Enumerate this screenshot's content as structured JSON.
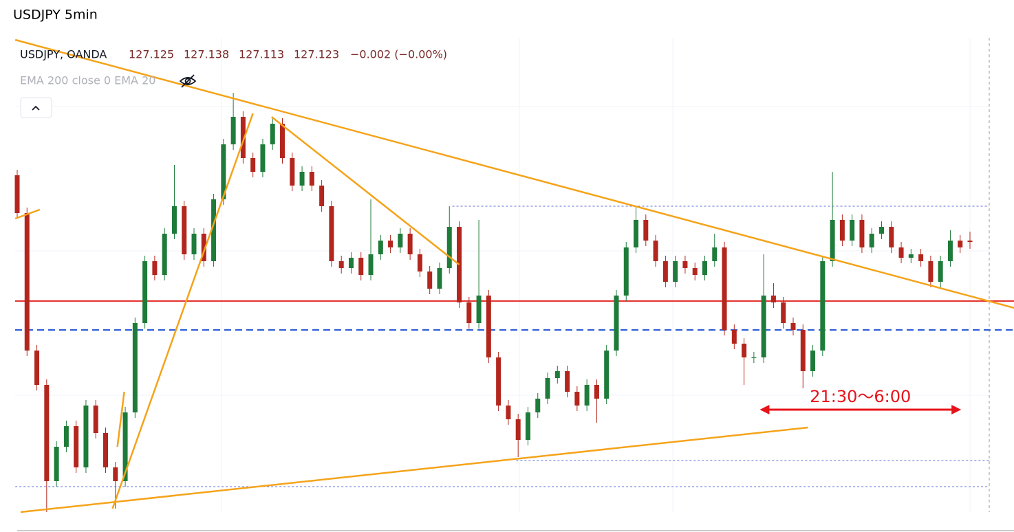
{
  "page_title": "USDJPY 5min",
  "legend": {
    "symbol": "USDJPY, OANDA",
    "open": 127.125,
    "high": 127.138,
    "low": 127.113,
    "close": 127.123,
    "change": "−0.002 (−0.00%)",
    "indicator": "EMA 200 close 0 EMA 20"
  },
  "chart_data": {
    "type": "candlestick",
    "ylim": [
      126.701,
      127.475
    ],
    "up_color": "#1e7b3a",
    "down_color": "#b3261e",
    "open": [
      127.22,
      127.165,
      126.965,
      126.915,
      126.775,
      126.825,
      126.855,
      126.795,
      126.885,
      126.845,
      126.795,
      126.775,
      126.875,
      127.005,
      127.095,
      127.075,
      127.135,
      127.175,
      127.105,
      127.135,
      127.095,
      127.185,
      127.265,
      127.305,
      127.245,
      127.225,
      127.265,
      127.295,
      127.245,
      127.205,
      127.225,
      127.205,
      127.175,
      127.095,
      127.085,
      127.1,
      127.075,
      127.105,
      127.125,
      127.115,
      127.135,
      127.105,
      127.08,
      127.055,
      127.085,
      127.145,
      127.035,
      127.005,
      127.045,
      126.955,
      126.885,
      126.865,
      126.835,
      126.875,
      126.895,
      126.925,
      126.935,
      126.905,
      126.885,
      126.915,
      126.895,
      126.965,
      127.045,
      127.115,
      127.155,
      127.125,
      127.095,
      127.065,
      127.095,
      127.085,
      127.075,
      127.095,
      127.115,
      126.995,
      126.975,
      126.955,
      126.955,
      127.045,
      127.035,
      127.005,
      126.995,
      126.935,
      126.965,
      127.095,
      127.155,
      127.125,
      127.155,
      127.115,
      127.135,
      127.145,
      127.115,
      127.1,
      127.105,
      127.095,
      127.065,
      127.095,
      127.125,
      127.125
    ],
    "high": [
      127.228,
      127.173,
      126.973,
      126.923,
      126.833,
      126.863,
      126.863,
      126.893,
      126.893,
      126.853,
      126.803,
      126.883,
      127.013,
      127.103,
      127.103,
      127.143,
      127.235,
      127.183,
      127.143,
      127.143,
      127.193,
      127.273,
      127.34,
      127.313,
      127.253,
      127.273,
      127.303,
      127.303,
      127.253,
      127.233,
      127.233,
      127.213,
      127.183,
      127.103,
      127.108,
      127.108,
      127.185,
      127.133,
      127.133,
      127.143,
      127.143,
      127.113,
      127.088,
      127.093,
      127.175,
      127.153,
      127.043,
      127.155,
      127.053,
      126.963,
      126.893,
      126.873,
      126.883,
      126.903,
      126.933,
      126.943,
      126.943,
      126.913,
      126.923,
      126.923,
      126.973,
      127.053,
      127.123,
      127.175,
      127.163,
      127.133,
      127.103,
      127.103,
      127.103,
      127.093,
      127.103,
      127.135,
      127.123,
      127.003,
      126.983,
      126.963,
      127.105,
      127.063,
      127.043,
      127.013,
      127.003,
      126.973,
      127.103,
      127.225,
      127.163,
      127.163,
      127.163,
      127.143,
      127.153,
      127.153,
      127.123,
      127.113,
      127.113,
      127.103,
      127.103,
      127.14,
      127.133,
      127.138
    ],
    "low": [
      127.157,
      126.957,
      126.907,
      126.73,
      126.767,
      126.817,
      126.787,
      126.787,
      126.837,
      126.787,
      126.735,
      126.767,
      126.867,
      126.997,
      127.067,
      127.067,
      127.127,
      127.097,
      127.097,
      127.087,
      127.087,
      127.177,
      127.257,
      127.237,
      127.217,
      127.217,
      127.257,
      127.237,
      127.197,
      127.197,
      127.197,
      127.167,
      127.087,
      127.077,
      127.077,
      127.067,
      127.067,
      127.097,
      127.107,
      127.107,
      127.097,
      127.072,
      127.047,
      127.047,
      127.077,
      127.027,
      126.997,
      126.997,
      126.947,
      126.877,
      126.857,
      126.81,
      126.827,
      126.867,
      126.887,
      126.917,
      126.897,
      126.877,
      126.877,
      126.86,
      126.887,
      126.957,
      127.037,
      127.107,
      127.117,
      127.087,
      127.057,
      127.057,
      127.077,
      127.067,
      127.067,
      127.087,
      126.987,
      126.967,
      126.915,
      126.947,
      126.947,
      127.027,
      126.997,
      126.987,
      126.91,
      126.927,
      126.957,
      127.087,
      127.117,
      127.117,
      127.107,
      127.107,
      127.127,
      127.107,
      127.092,
      127.092,
      127.087,
      127.057,
      127.057,
      127.087,
      127.107,
      127.113
    ],
    "close": [
      127.165,
      126.965,
      126.915,
      126.775,
      126.825,
      126.855,
      126.795,
      126.885,
      126.845,
      126.795,
      126.775,
      126.875,
      127.005,
      127.095,
      127.075,
      127.135,
      127.175,
      127.105,
      127.135,
      127.095,
      127.185,
      127.265,
      127.305,
      127.245,
      127.225,
      127.265,
      127.295,
      127.245,
      127.205,
      127.225,
      127.205,
      127.175,
      127.095,
      127.085,
      127.1,
      127.075,
      127.105,
      127.125,
      127.115,
      127.135,
      127.105,
      127.08,
      127.055,
      127.085,
      127.145,
      127.035,
      127.005,
      127.045,
      126.955,
      126.885,
      126.865,
      126.835,
      126.875,
      126.895,
      126.925,
      126.935,
      126.905,
      126.885,
      126.915,
      126.895,
      126.965,
      127.045,
      127.115,
      127.155,
      127.125,
      127.095,
      127.065,
      127.095,
      127.085,
      127.075,
      127.095,
      127.115,
      126.995,
      126.975,
      126.955,
      126.955,
      127.045,
      127.035,
      127.005,
      126.995,
      126.935,
      126.965,
      127.095,
      127.155,
      127.125,
      127.155,
      127.115,
      127.135,
      127.145,
      127.115,
      127.1,
      127.105,
      127.095,
      127.065,
      127.095,
      127.125,
      127.115,
      127.123
    ],
    "levels": [
      {
        "price": 127.037,
        "color": "#e53935",
        "style": "solid"
      },
      {
        "price": 126.995,
        "color": "#2f5fd6",
        "style": "dashed"
      },
      {
        "price": 127.175,
        "color": "#5b6fd6",
        "style": "dotted",
        "from": 44.3
      },
      {
        "price": 126.805,
        "color": "#5b6fd6",
        "style": "dotted",
        "from": 50.8
      },
      {
        "price": 126.767,
        "color": "#5b6fd6",
        "style": "dotted",
        "from": -0.2
      }
    ],
    "trendlines": [
      {
        "x": [
          -0.2,
          101.5
        ],
        "y": [
          127.417,
          127.027
        ]
      },
      {
        "x": [
          -0.2,
          2.3
        ],
        "y": [
          127.157,
          127.17
        ]
      },
      {
        "x": [
          9.7,
          24.0
        ],
        "y": [
          126.735,
          127.31
        ]
      },
      {
        "x": [
          10.2,
          10.9
        ],
        "y": [
          126.825,
          126.905
        ]
      },
      {
        "x": [
          25.9,
          45.0
        ],
        "y": [
          127.305,
          127.09
        ]
      },
      {
        "x": [
          0.35,
          80.5
        ],
        "y": [
          126.73,
          126.853
        ]
      }
    ],
    "trend_color": "#f5a31a",
    "range_arrow": {
      "x": [
        75.6,
        96.1
      ],
      "y": 126.879,
      "label": "21:30～6:00",
      "color": "#e8131a"
    }
  }
}
